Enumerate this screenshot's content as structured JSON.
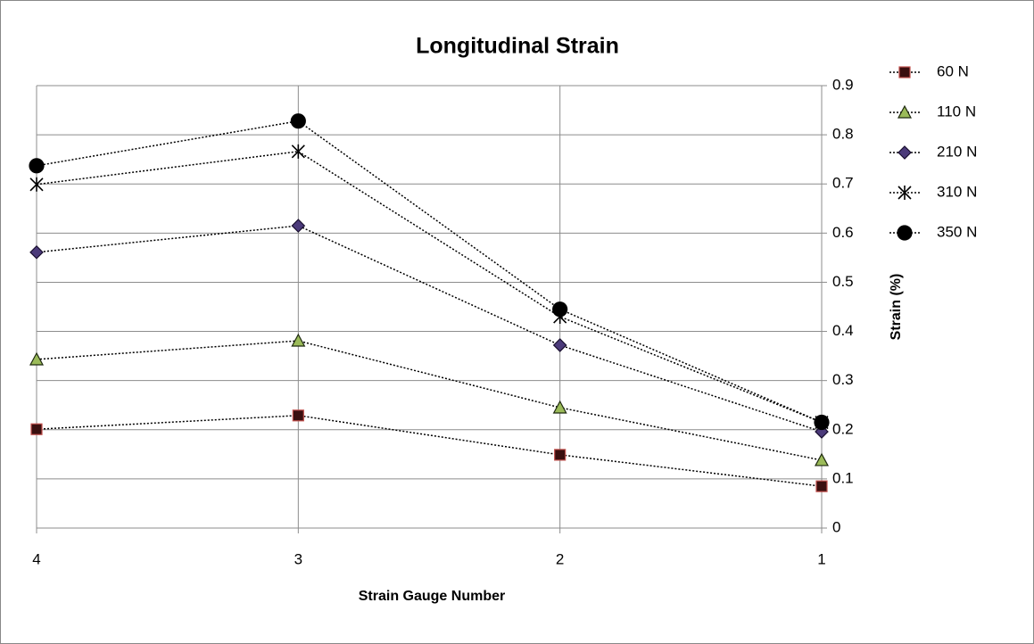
{
  "chart_data": {
    "type": "line",
    "title": "Longitudinal Strain",
    "x_label": "Strain Gauge Number",
    "y_label": "Strain (%)",
    "categories": [
      "4",
      "3",
      "2",
      "1"
    ],
    "series": [
      {
        "name": "60 N",
        "color": "#3a0f0f",
        "edge": "#c0504d",
        "marker": "square",
        "values": [
          0.201,
          0.229,
          0.149,
          0.085
        ]
      },
      {
        "name": "110 N",
        "color": "#9bbb59",
        "edge": "#1f2a10",
        "marker": "triangle",
        "values": [
          0.343,
          0.381,
          0.245,
          0.138
        ]
      },
      {
        "name": "210 N",
        "color": "#4b3a7a",
        "edge": "#1a1030",
        "marker": "diamond",
        "values": [
          0.561,
          0.615,
          0.372,
          0.196
        ]
      },
      {
        "name": "310 N",
        "color": "#000000",
        "edge": "#000000",
        "marker": "star",
        "values": [
          0.699,
          0.766,
          0.43,
          0.215
        ]
      },
      {
        "name": "350 N",
        "color": "#000000",
        "edge": "#000000",
        "marker": "circle",
        "values": [
          0.737,
          0.828,
          0.445,
          0.215
        ]
      }
    ],
    "ylim": [
      0,
      0.9
    ],
    "yticks": [
      0,
      0.1,
      0.2,
      0.3,
      0.4,
      0.5,
      0.6,
      0.7,
      0.8,
      0.9
    ],
    "grid": true,
    "y_axis_side": "right",
    "legend": "right"
  }
}
